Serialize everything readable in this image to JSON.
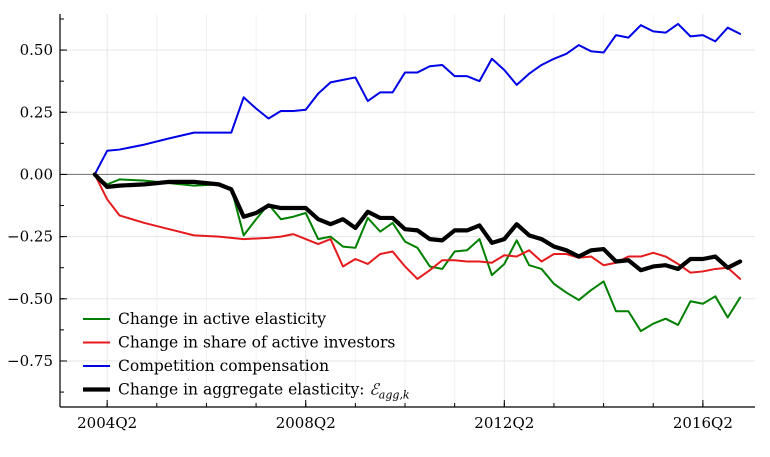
{
  "chart_data": {
    "type": "line",
    "title": "",
    "xlabel": "",
    "ylabel": "",
    "x_ticks": [
      "2004Q2",
      "2008Q2",
      "2012Q2",
      "2016Q2"
    ],
    "x_tick_values": [
      2004.25,
      2008.25,
      2012.25,
      2016.25
    ],
    "y_ticks": [
      "0.50",
      "0.25",
      "0.00",
      "−0.25",
      "−0.50",
      "−0.75"
    ],
    "y_tick_values": [
      0.5,
      0.25,
      0.0,
      -0.25,
      -0.5,
      -0.75
    ],
    "xlim": [
      2003.3,
      2017.3
    ],
    "ylim": [
      -0.935,
      0.645
    ],
    "grid": true,
    "legend_position": "bottom-left",
    "series": [
      {
        "name": "Change in active elasticity",
        "color": "#008000",
        "style": "normal",
        "points": [
          [
            2004.0,
            0.0
          ],
          [
            2004.25,
            -0.04
          ],
          [
            2004.5,
            -0.02
          ],
          [
            2005.0,
            -0.025
          ],
          [
            2005.5,
            -0.035
          ],
          [
            2006.0,
            -0.045
          ],
          [
            2006.5,
            -0.04
          ],
          [
            2006.75,
            -0.055
          ],
          [
            2007.0,
            -0.245
          ],
          [
            2007.25,
            -0.18
          ],
          [
            2007.5,
            -0.12
          ],
          [
            2007.75,
            -0.18
          ],
          [
            2008.0,
            -0.17
          ],
          [
            2008.25,
            -0.155
          ],
          [
            2008.5,
            -0.26
          ],
          [
            2008.75,
            -0.25
          ],
          [
            2009.0,
            -0.29
          ],
          [
            2009.25,
            -0.295
          ],
          [
            2009.5,
            -0.175
          ],
          [
            2009.75,
            -0.23
          ],
          [
            2010.0,
            -0.195
          ],
          [
            2010.25,
            -0.27
          ],
          [
            2010.5,
            -0.295
          ],
          [
            2010.75,
            -0.37
          ],
          [
            2011.0,
            -0.38
          ],
          [
            2011.25,
            -0.31
          ],
          [
            2011.5,
            -0.305
          ],
          [
            2011.75,
            -0.26
          ],
          [
            2012.0,
            -0.405
          ],
          [
            2012.25,
            -0.36
          ],
          [
            2012.5,
            -0.265
          ],
          [
            2012.75,
            -0.365
          ],
          [
            2013.0,
            -0.38
          ],
          [
            2013.25,
            -0.44
          ],
          [
            2013.5,
            -0.475
          ],
          [
            2013.75,
            -0.505
          ],
          [
            2014.0,
            -0.465
          ],
          [
            2014.25,
            -0.43
          ],
          [
            2014.5,
            -0.55
          ],
          [
            2014.75,
            -0.55
          ],
          [
            2015.0,
            -0.63
          ],
          [
            2015.25,
            -0.6
          ],
          [
            2015.5,
            -0.58
          ],
          [
            2015.75,
            -0.605
          ],
          [
            2016.0,
            -0.51
          ],
          [
            2016.25,
            -0.52
          ],
          [
            2016.5,
            -0.49
          ],
          [
            2016.75,
            -0.575
          ],
          [
            2017.0,
            -0.495
          ]
        ]
      },
      {
        "name": "Change in share of active investors",
        "color": "#e41a1c",
        "style": "normal",
        "points": [
          [
            2004.0,
            0.0
          ],
          [
            2004.25,
            -0.1
          ],
          [
            2004.5,
            -0.165
          ],
          [
            2005.0,
            -0.195
          ],
          [
            2005.5,
            -0.22
          ],
          [
            2006.0,
            -0.245
          ],
          [
            2006.5,
            -0.25
          ],
          [
            2006.75,
            -0.255
          ],
          [
            2007.0,
            -0.26
          ],
          [
            2007.5,
            -0.255
          ],
          [
            2007.75,
            -0.25
          ],
          [
            2008.0,
            -0.24
          ],
          [
            2008.25,
            -0.26
          ],
          [
            2008.5,
            -0.28
          ],
          [
            2008.75,
            -0.26
          ],
          [
            2009.0,
            -0.37
          ],
          [
            2009.25,
            -0.34
          ],
          [
            2009.5,
            -0.36
          ],
          [
            2009.75,
            -0.32
          ],
          [
            2010.0,
            -0.31
          ],
          [
            2010.25,
            -0.37
          ],
          [
            2010.5,
            -0.42
          ],
          [
            2010.75,
            -0.385
          ],
          [
            2011.0,
            -0.345
          ],
          [
            2011.25,
            -0.345
          ],
          [
            2011.5,
            -0.35
          ],
          [
            2011.75,
            -0.35
          ],
          [
            2012.0,
            -0.355
          ],
          [
            2012.25,
            -0.325
          ],
          [
            2012.5,
            -0.33
          ],
          [
            2012.75,
            -0.305
          ],
          [
            2013.0,
            -0.35
          ],
          [
            2013.25,
            -0.32
          ],
          [
            2013.5,
            -0.32
          ],
          [
            2013.75,
            -0.335
          ],
          [
            2014.0,
            -0.33
          ],
          [
            2014.25,
            -0.365
          ],
          [
            2014.5,
            -0.355
          ],
          [
            2014.75,
            -0.33
          ],
          [
            2015.0,
            -0.33
          ],
          [
            2015.25,
            -0.315
          ],
          [
            2015.5,
            -0.33
          ],
          [
            2015.75,
            -0.36
          ],
          [
            2016.0,
            -0.395
          ],
          [
            2016.25,
            -0.39
          ],
          [
            2016.5,
            -0.38
          ],
          [
            2016.75,
            -0.375
          ],
          [
            2017.0,
            -0.42
          ]
        ]
      },
      {
        "name": "Competition compensation",
        "color": "#0000e6",
        "style": "normal",
        "points": [
          [
            2004.0,
            0.0
          ],
          [
            2004.25,
            0.095
          ],
          [
            2004.5,
            0.1
          ],
          [
            2005.0,
            0.12
          ],
          [
            2005.5,
            0.145
          ],
          [
            2006.0,
            0.168
          ],
          [
            2006.5,
            0.168
          ],
          [
            2006.75,
            0.168
          ],
          [
            2007.0,
            0.31
          ],
          [
            2007.25,
            0.265
          ],
          [
            2007.5,
            0.225
          ],
          [
            2007.75,
            0.255
          ],
          [
            2008.0,
            0.255
          ],
          [
            2008.25,
            0.26
          ],
          [
            2008.5,
            0.325
          ],
          [
            2008.75,
            0.37
          ],
          [
            2009.0,
            0.38
          ],
          [
            2009.25,
            0.39
          ],
          [
            2009.5,
            0.295
          ],
          [
            2009.75,
            0.33
          ],
          [
            2010.0,
            0.33
          ],
          [
            2010.25,
            0.41
          ],
          [
            2010.5,
            0.41
          ],
          [
            2010.75,
            0.435
          ],
          [
            2011.0,
            0.44
          ],
          [
            2011.25,
            0.395
          ],
          [
            2011.5,
            0.395
          ],
          [
            2011.75,
            0.375
          ],
          [
            2012.0,
            0.465
          ],
          [
            2012.25,
            0.42
          ],
          [
            2012.5,
            0.36
          ],
          [
            2012.75,
            0.405
          ],
          [
            2013.0,
            0.44
          ],
          [
            2013.25,
            0.465
          ],
          [
            2013.5,
            0.485
          ],
          [
            2013.75,
            0.52
          ],
          [
            2014.0,
            0.495
          ],
          [
            2014.25,
            0.49
          ],
          [
            2014.5,
            0.56
          ],
          [
            2014.75,
            0.55
          ],
          [
            2015.0,
            0.6
          ],
          [
            2015.25,
            0.575
          ],
          [
            2015.5,
            0.57
          ],
          [
            2015.75,
            0.605
          ],
          [
            2016.0,
            0.555
          ],
          [
            2016.25,
            0.56
          ],
          [
            2016.5,
            0.535
          ],
          [
            2016.75,
            0.59
          ],
          [
            2017.0,
            0.565
          ]
        ]
      },
      {
        "name": "Change in aggregate elasticity: ",
        "name_math": "ℰ",
        "name_sub": "agg,k",
        "color": "#000000",
        "style": "bold",
        "points": [
          [
            2004.0,
            0.0
          ],
          [
            2004.25,
            -0.05
          ],
          [
            2004.5,
            -0.045
          ],
          [
            2005.0,
            -0.04
          ],
          [
            2005.5,
            -0.03
          ],
          [
            2006.0,
            -0.03
          ],
          [
            2006.5,
            -0.04
          ],
          [
            2006.75,
            -0.06
          ],
          [
            2007.0,
            -0.17
          ],
          [
            2007.25,
            -0.155
          ],
          [
            2007.5,
            -0.125
          ],
          [
            2007.75,
            -0.135
          ],
          [
            2008.0,
            -0.135
          ],
          [
            2008.25,
            -0.135
          ],
          [
            2008.5,
            -0.18
          ],
          [
            2008.75,
            -0.2
          ],
          [
            2009.0,
            -0.18
          ],
          [
            2009.25,
            -0.215
          ],
          [
            2009.5,
            -0.15
          ],
          [
            2009.75,
            -0.175
          ],
          [
            2010.0,
            -0.175
          ],
          [
            2010.25,
            -0.22
          ],
          [
            2010.5,
            -0.225
          ],
          [
            2010.75,
            -0.26
          ],
          [
            2011.0,
            -0.265
          ],
          [
            2011.25,
            -0.225
          ],
          [
            2011.5,
            -0.225
          ],
          [
            2011.75,
            -0.205
          ],
          [
            2012.0,
            -0.275
          ],
          [
            2012.25,
            -0.26
          ],
          [
            2012.5,
            -0.2
          ],
          [
            2012.75,
            -0.245
          ],
          [
            2013.0,
            -0.26
          ],
          [
            2013.25,
            -0.29
          ],
          [
            2013.5,
            -0.305
          ],
          [
            2013.75,
            -0.33
          ],
          [
            2014.0,
            -0.305
          ],
          [
            2014.25,
            -0.3
          ],
          [
            2014.5,
            -0.35
          ],
          [
            2014.75,
            -0.345
          ],
          [
            2015.0,
            -0.385
          ],
          [
            2015.25,
            -0.37
          ],
          [
            2015.5,
            -0.365
          ],
          [
            2015.75,
            -0.38
          ],
          [
            2016.0,
            -0.34
          ],
          [
            2016.25,
            -0.34
          ],
          [
            2016.5,
            -0.33
          ],
          [
            2016.75,
            -0.375
          ],
          [
            2017.0,
            -0.35
          ]
        ]
      }
    ]
  }
}
